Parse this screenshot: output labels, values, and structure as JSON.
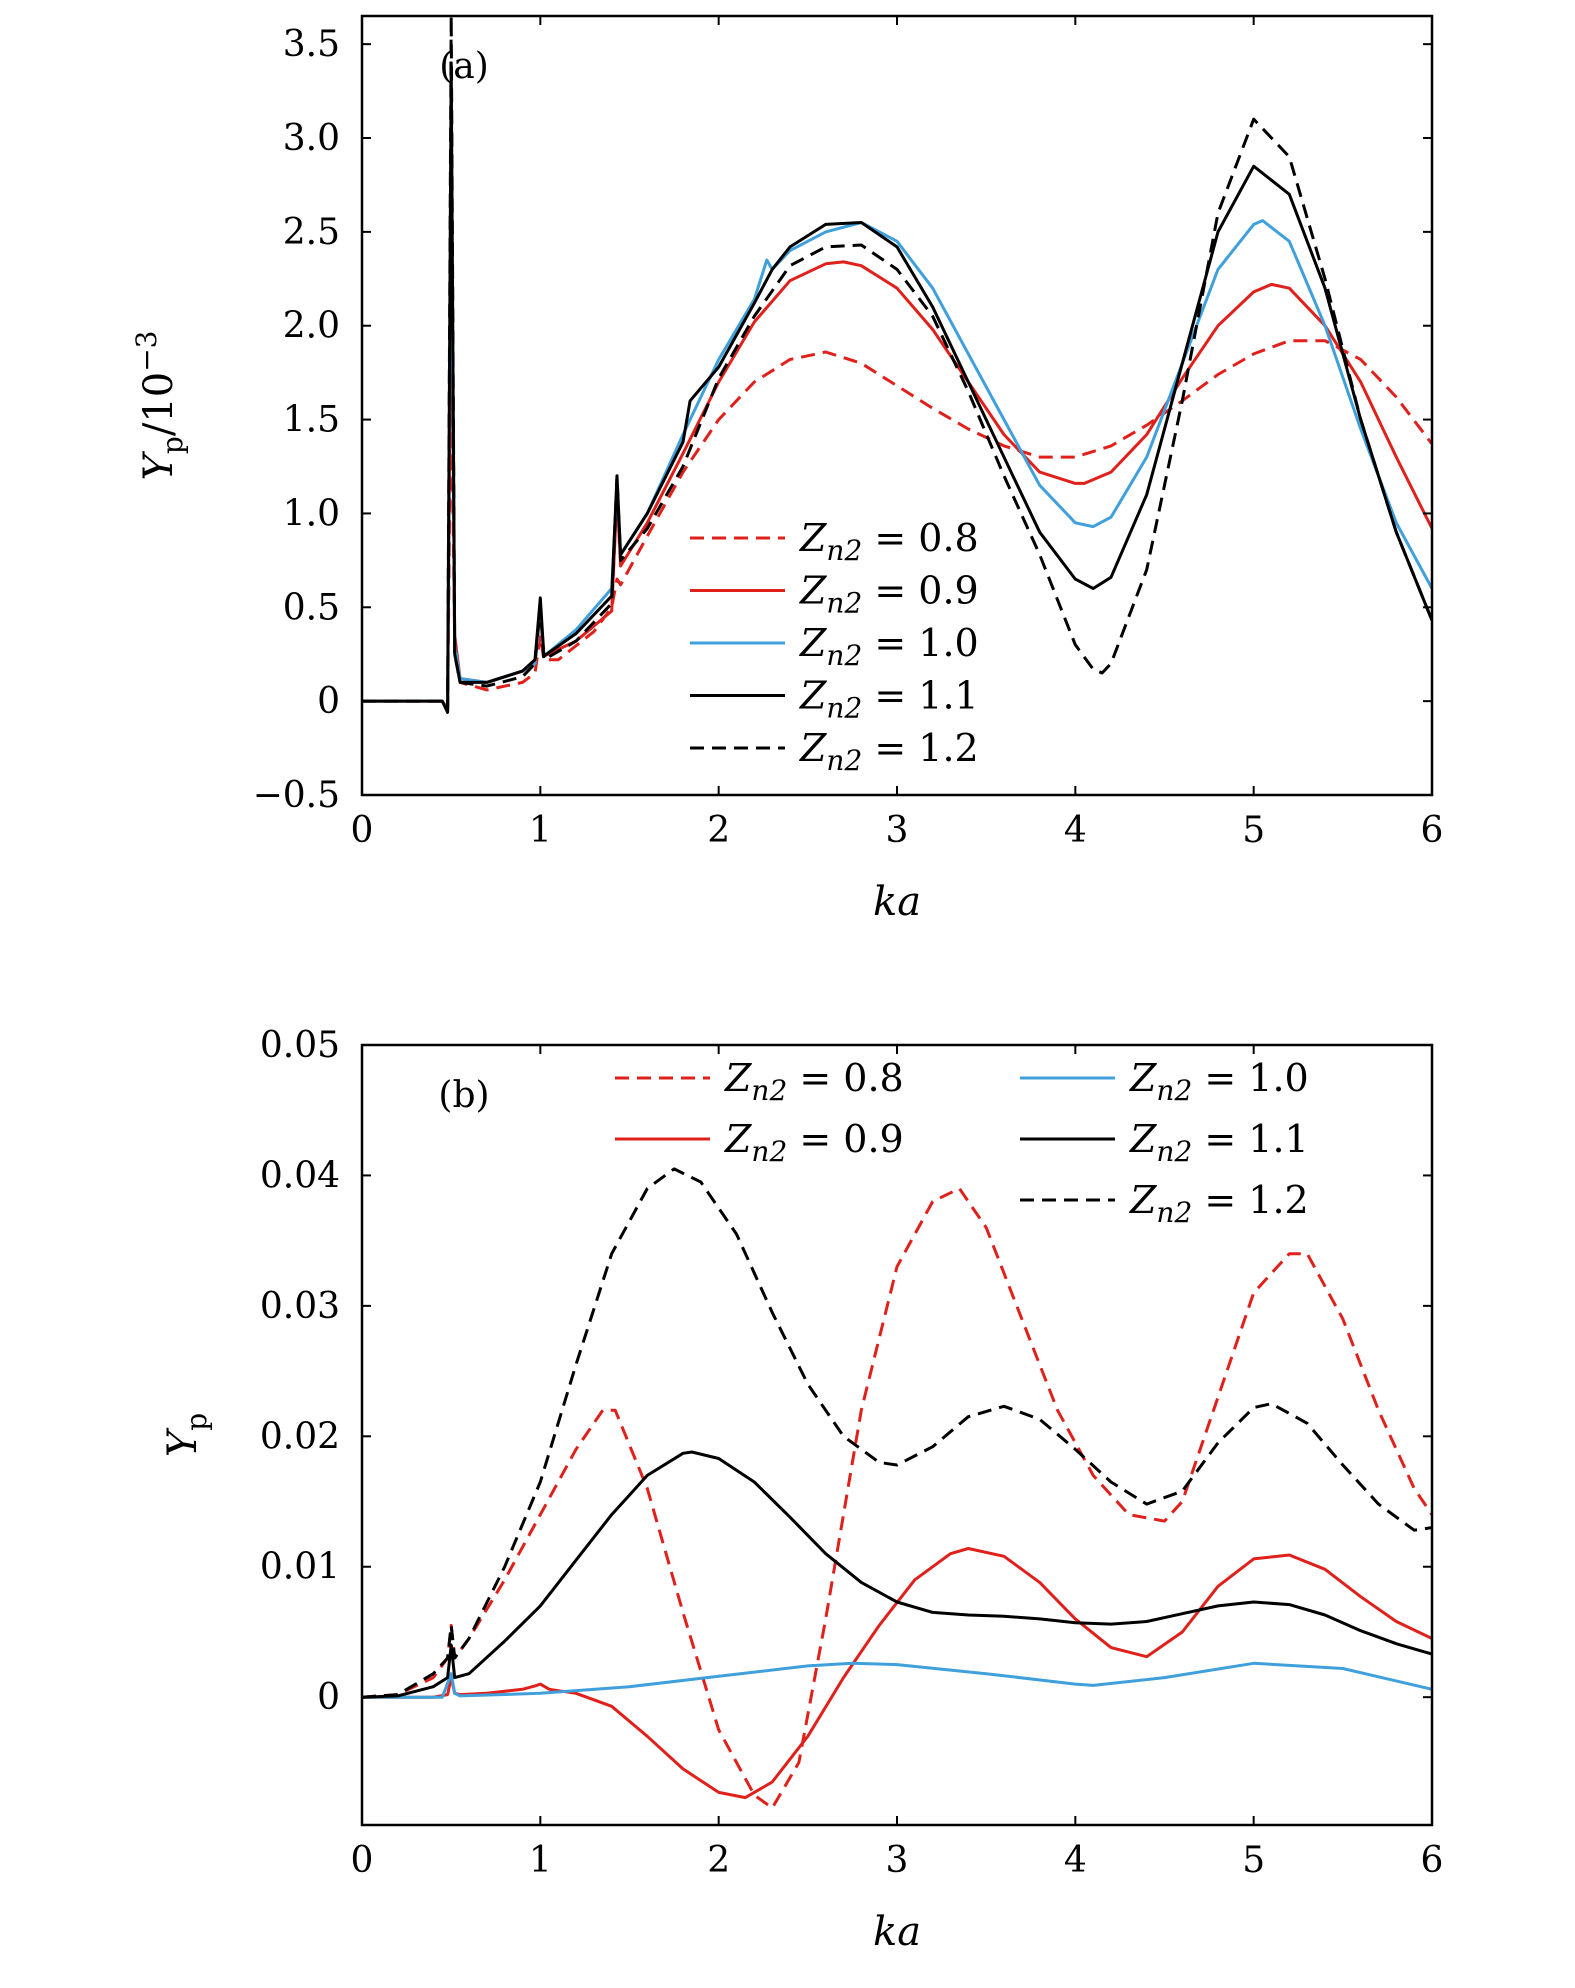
{
  "colors": {
    "red": "#e0201b",
    "blue": "#3fa0dc",
    "black": "#000000"
  },
  "chart_data": [
    {
      "type": "line",
      "panel_label": "(a)",
      "xlabel": "ka",
      "ylabel": "Y_p/10^-3",
      "ylabel_main": "Y",
      "ylabel_sub": "p",
      "ylabel_rest": "/10",
      "ylabel_sup": "−3",
      "xlim": [
        0,
        6
      ],
      "ylim": [
        -0.5,
        3.65
      ],
      "x_ticks": [
        0,
        1,
        2,
        3,
        4,
        5,
        6
      ],
      "x_tick_labels": [
        "0",
        "1",
        "2",
        "3",
        "4",
        "5",
        "6"
      ],
      "y_ticks": [
        -0.5,
        0,
        0.5,
        1.0,
        1.5,
        2.0,
        2.5,
        3.0,
        3.5
      ],
      "y_tick_labels": [
        "−0.5",
        "0",
        "0.5",
        "1.0",
        "1.5",
        "2.0",
        "2.5",
        "3.0",
        "3.5"
      ],
      "legend_position": "lower-center",
      "series": [
        {
          "name": "Zn2 = 0.8",
          "legend_text": "Z",
          "legend_sub": "n2",
          "legend_value": " = 0.8",
          "color": "red",
          "dash": true,
          "x": [
            0,
            0.45,
            0.48,
            0.5,
            0.52,
            0.55,
            0.7,
            0.9,
            0.97,
            1.0,
            1.02,
            1.1,
            1.3,
            1.4,
            1.43,
            1.45,
            1.6,
            1.8,
            2.0,
            2.2,
            2.4,
            2.6,
            2.8,
            3.0,
            3.2,
            3.4,
            3.6,
            3.8,
            4.0,
            4.2,
            4.4,
            4.6,
            4.8,
            5.0,
            5.2,
            5.4,
            5.6,
            5.8,
            6.0
          ],
          "y": [
            0,
            0,
            -0.04,
            1.8,
            0.3,
            0.1,
            0.06,
            0.1,
            0.15,
            0.35,
            0.22,
            0.22,
            0.37,
            0.5,
            0.65,
            0.62,
            0.88,
            1.22,
            1.5,
            1.7,
            1.82,
            1.86,
            1.8,
            1.68,
            1.56,
            1.45,
            1.36,
            1.3,
            1.3,
            1.36,
            1.47,
            1.6,
            1.74,
            1.85,
            1.92,
            1.92,
            1.82,
            1.62,
            1.37
          ]
        },
        {
          "name": "Zn2 = 0.9",
          "legend_text": "Z",
          "legend_sub": "n2",
          "legend_value": " = 0.9",
          "color": "red",
          "dash": false,
          "x": [
            0,
            0.45,
            0.48,
            0.5,
            0.52,
            0.55,
            0.7,
            0.9,
            0.97,
            1.0,
            1.02,
            1.2,
            1.4,
            1.43,
            1.45,
            1.6,
            1.8,
            2.0,
            2.2,
            2.4,
            2.6,
            2.7,
            2.8,
            3.0,
            3.2,
            3.4,
            3.6,
            3.8,
            4.0,
            4.05,
            4.2,
            4.4,
            4.6,
            4.8,
            5.0,
            5.1,
            5.2,
            5.4,
            5.6,
            5.8,
            6.0
          ],
          "y": [
            0,
            0,
            -0.04,
            2.5,
            0.35,
            0.12,
            0.1,
            0.16,
            0.22,
            0.5,
            0.24,
            0.32,
            0.48,
            1.1,
            0.72,
            0.95,
            1.32,
            1.7,
            2.02,
            2.24,
            2.33,
            2.34,
            2.32,
            2.2,
            1.98,
            1.7,
            1.42,
            1.22,
            1.16,
            1.16,
            1.22,
            1.42,
            1.72,
            2.0,
            2.18,
            2.22,
            2.2,
            2.0,
            1.7,
            1.3,
            0.92
          ]
        },
        {
          "name": "Zn2 = 1.0",
          "legend_text": "Z",
          "legend_sub": "n2",
          "legend_value": " = 1.0",
          "color": "blue",
          "dash": false,
          "x": [
            0,
            0.45,
            0.48,
            0.5,
            0.52,
            0.55,
            0.7,
            0.9,
            0.97,
            1.0,
            1.02,
            1.2,
            1.4,
            1.43,
            1.45,
            1.6,
            1.8,
            2.0,
            2.2,
            2.27,
            2.3,
            2.4,
            2.6,
            2.8,
            3.0,
            3.2,
            3.4,
            3.6,
            3.8,
            4.0,
            4.1,
            4.2,
            4.4,
            4.6,
            4.8,
            5.0,
            5.05,
            5.2,
            5.4,
            5.6,
            5.8,
            6.0
          ],
          "y": [
            0,
            0,
            -0.05,
            3.0,
            0.3,
            0.12,
            0.1,
            0.16,
            0.2,
            0.5,
            0.24,
            0.38,
            0.6,
            1.15,
            0.78,
            1.0,
            1.42,
            1.82,
            2.14,
            2.35,
            2.3,
            2.4,
            2.5,
            2.55,
            2.45,
            2.2,
            1.85,
            1.5,
            1.15,
            0.95,
            0.93,
            0.98,
            1.3,
            1.8,
            2.3,
            2.54,
            2.56,
            2.45,
            2.0,
            1.45,
            0.95,
            0.6
          ]
        },
        {
          "name": "Zn2 = 1.1",
          "legend_text": "Z",
          "legend_sub": "n2",
          "legend_value": " = 1.1",
          "color": "black",
          "dash": false,
          "x": [
            0,
            0.45,
            0.48,
            0.5,
            0.52,
            0.55,
            0.7,
            0.9,
            0.97,
            1.0,
            1.02,
            1.2,
            1.4,
            1.43,
            1.45,
            1.6,
            1.8,
            1.84,
            2.0,
            2.2,
            2.3,
            2.4,
            2.6,
            2.8,
            3.0,
            3.2,
            3.4,
            3.6,
            3.8,
            4.0,
            4.1,
            4.2,
            4.4,
            4.6,
            4.8,
            5.0,
            5.2,
            5.4,
            5.6,
            5.8,
            6.0
          ],
          "y": [
            0,
            0,
            -0.06,
            3.4,
            0.25,
            0.1,
            0.1,
            0.16,
            0.22,
            0.55,
            0.24,
            0.36,
            0.56,
            1.2,
            0.78,
            1.0,
            1.38,
            1.6,
            1.78,
            2.12,
            2.3,
            2.42,
            2.54,
            2.55,
            2.42,
            2.1,
            1.7,
            1.3,
            0.9,
            0.65,
            0.6,
            0.66,
            1.1,
            1.8,
            2.5,
            2.85,
            2.7,
            2.2,
            1.5,
            0.9,
            0.43
          ]
        },
        {
          "name": "Zn2 = 1.2",
          "legend_text": "Z",
          "legend_sub": "n2",
          "legend_value": " = 1.2",
          "color": "black",
          "dash": true,
          "x": [
            0,
            0.45,
            0.48,
            0.5,
            0.52,
            0.55,
            0.7,
            0.9,
            0.97,
            1.0,
            1.02,
            1.2,
            1.4,
            1.43,
            1.45,
            1.6,
            1.8,
            2.0,
            2.2,
            2.4,
            2.6,
            2.8,
            3.0,
            3.2,
            3.4,
            3.6,
            3.8,
            4.0,
            4.1,
            4.15,
            4.2,
            4.4,
            4.6,
            4.8,
            5.0,
            5.2,
            5.4,
            5.6,
            5.8,
            6.0
          ],
          "y": [
            0,
            0,
            -0.05,
            3.65,
            0.25,
            0.1,
            0.08,
            0.13,
            0.2,
            0.5,
            0.22,
            0.32,
            0.52,
            1.2,
            0.75,
            0.92,
            1.25,
            1.72,
            2.05,
            2.32,
            2.42,
            2.43,
            2.3,
            2.05,
            1.65,
            1.2,
            0.78,
            0.3,
            0.17,
            0.15,
            0.2,
            0.7,
            1.6,
            2.6,
            3.1,
            2.9,
            2.25,
            1.5,
            0.9,
            0.43
          ]
        }
      ]
    },
    {
      "type": "line",
      "panel_label": "(b)",
      "xlabel": "ka",
      "ylabel": "Y_p",
      "ylabel_main": "Y",
      "ylabel_sub": "p",
      "xlim": [
        0,
        6
      ],
      "ylim": [
        -0.0098,
        0.05
      ],
      "x_ticks": [
        0,
        1,
        2,
        3,
        4,
        5,
        6
      ],
      "x_tick_labels": [
        "0",
        "1",
        "2",
        "3",
        "4",
        "5",
        "6"
      ],
      "y_ticks": [
        0,
        0.01,
        0.02,
        0.03,
        0.04,
        0.05
      ],
      "y_tick_labels": [
        "0",
        "0.01",
        "0.02",
        "0.03",
        "0.04",
        "0.05"
      ],
      "legend_position": "top-right",
      "series": [
        {
          "name": "Zn2 = 0.8",
          "legend_text": "Z",
          "legend_sub": "n2",
          "legend_value": " = 0.8",
          "color": "red",
          "dash": true,
          "x": [
            0,
            0.2,
            0.4,
            0.48,
            0.5,
            0.52,
            0.6,
            0.8,
            1.0,
            1.2,
            1.35,
            1.42,
            1.6,
            1.8,
            2.0,
            2.2,
            2.3,
            2.45,
            2.6,
            2.8,
            3.0,
            3.2,
            3.35,
            3.5,
            3.7,
            3.9,
            4.1,
            4.3,
            4.5,
            4.6,
            4.8,
            5.0,
            5.2,
            5.3,
            5.5,
            5.7,
            5.9,
            6.0
          ],
          "y": [
            0,
            0.0002,
            0.0015,
            0.003,
            0.0055,
            0.003,
            0.0045,
            0.009,
            0.014,
            0.019,
            0.022,
            0.022,
            0.016,
            0.0065,
            -0.0025,
            -0.0075,
            -0.0085,
            -0.005,
            0.006,
            0.022,
            0.033,
            0.038,
            0.039,
            0.036,
            0.029,
            0.022,
            0.017,
            0.014,
            0.0135,
            0.015,
            0.023,
            0.031,
            0.034,
            0.034,
            0.029,
            0.022,
            0.016,
            0.014
          ]
        },
        {
          "name": "Zn2 = 0.9",
          "legend_text": "Z",
          "legend_sub": "n2",
          "legend_value": " = 0.9",
          "color": "red",
          "dash": false,
          "x": [
            0,
            0.4,
            0.48,
            0.5,
            0.52,
            0.55,
            0.7,
            0.9,
            0.98,
            1.0,
            1.05,
            1.2,
            1.4,
            1.6,
            1.8,
            2.0,
            2.15,
            2.3,
            2.5,
            2.7,
            2.9,
            3.1,
            3.3,
            3.4,
            3.6,
            3.8,
            4.0,
            4.2,
            4.4,
            4.6,
            4.8,
            5.0,
            5.2,
            5.4,
            5.6,
            5.8,
            6.0
          ],
          "y": [
            0,
            0,
            0.0002,
            0.0015,
            0.0003,
            0.0002,
            0.0003,
            0.0006,
            0.0009,
            0.001,
            0.0006,
            0.0003,
            -0.0007,
            -0.003,
            -0.0055,
            -0.0073,
            -0.0077,
            -0.0065,
            -0.003,
            0.0015,
            0.0055,
            0.009,
            0.011,
            0.0114,
            0.0108,
            0.0088,
            0.006,
            0.0038,
            0.0031,
            0.005,
            0.0085,
            0.0106,
            0.0109,
            0.0098,
            0.0077,
            0.0058,
            0.0045
          ]
        },
        {
          "name": "Zn2 = 1.0",
          "legend_text": "Z",
          "legend_sub": "n2",
          "legend_value": " = 1.0",
          "color": "blue",
          "dash": false,
          "x": [
            0,
            0.45,
            0.5,
            0.52,
            0.55,
            1.0,
            1.5,
            2.0,
            2.5,
            2.75,
            3.0,
            3.5,
            4.0,
            4.1,
            4.5,
            5.0,
            5.5,
            6.0
          ],
          "y": [
            0,
            0,
            0.0018,
            0.0003,
            0.0001,
            0.0003,
            0.0008,
            0.0016,
            0.0024,
            0.0026,
            0.0025,
            0.0018,
            0.001,
            0.0009,
            0.0015,
            0.0026,
            0.0022,
            0.0006
          ]
        },
        {
          "name": "Zn2 = 1.1",
          "legend_text": "Z",
          "legend_sub": "n2",
          "legend_value": " = 1.1",
          "color": "black",
          "dash": false,
          "x": [
            0,
            0.2,
            0.4,
            0.48,
            0.5,
            0.52,
            0.6,
            0.8,
            1.0,
            1.2,
            1.4,
            1.6,
            1.8,
            1.85,
            2.0,
            2.2,
            2.4,
            2.6,
            2.8,
            3.0,
            3.2,
            3.4,
            3.6,
            3.8,
            4.0,
            4.2,
            4.4,
            4.6,
            4.8,
            5.0,
            5.2,
            5.4,
            5.6,
            5.8,
            6.0
          ],
          "y": [
            0,
            0.0001,
            0.0008,
            0.0015,
            0.004,
            0.0015,
            0.0018,
            0.0043,
            0.007,
            0.0105,
            0.014,
            0.017,
            0.0187,
            0.0188,
            0.0183,
            0.0165,
            0.0138,
            0.011,
            0.0088,
            0.0073,
            0.0065,
            0.0063,
            0.0062,
            0.006,
            0.0057,
            0.0056,
            0.0058,
            0.0064,
            0.007,
            0.0073,
            0.0071,
            0.0063,
            0.0051,
            0.0041,
            0.0033
          ]
        },
        {
          "name": "Zn2 = 1.2",
          "legend_text": "Z",
          "legend_sub": "n2",
          "legend_value": " = 1.2",
          "color": "black",
          "dash": true,
          "x": [
            0,
            0.2,
            0.4,
            0.48,
            0.5,
            0.52,
            0.6,
            0.8,
            1.0,
            1.2,
            1.4,
            1.6,
            1.75,
            1.9,
            2.1,
            2.3,
            2.5,
            2.7,
            2.9,
            3.0,
            3.2,
            3.4,
            3.6,
            3.8,
            4.0,
            4.2,
            4.4,
            4.6,
            4.8,
            5.0,
            5.1,
            5.3,
            5.5,
            5.7,
            5.9,
            6.0
          ],
          "y": [
            0,
            0.0002,
            0.0018,
            0.003,
            0.0055,
            0.003,
            0.0045,
            0.01,
            0.0165,
            0.0255,
            0.034,
            0.039,
            0.0405,
            0.0395,
            0.0355,
            0.0295,
            0.024,
            0.02,
            0.018,
            0.0178,
            0.0192,
            0.0215,
            0.0223,
            0.0213,
            0.019,
            0.0165,
            0.0148,
            0.0158,
            0.0195,
            0.0222,
            0.0225,
            0.021,
            0.0178,
            0.0148,
            0.0128,
            0.013
          ]
        }
      ]
    }
  ]
}
